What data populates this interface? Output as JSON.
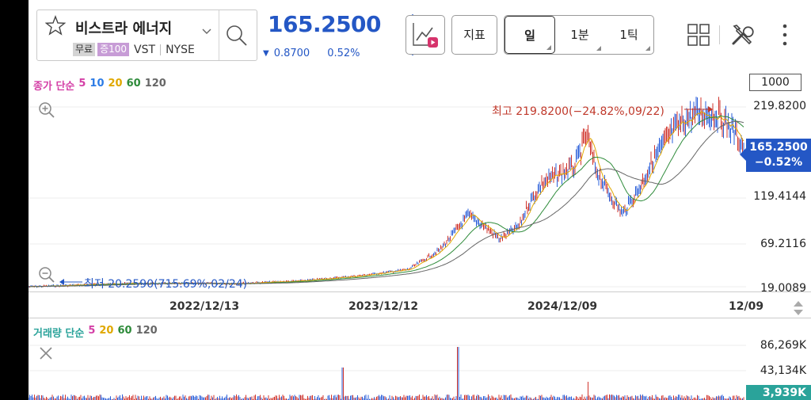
{
  "stock": {
    "name": "비스트라 에너지",
    "tag_free": "무료",
    "tag_margin": "증100",
    "ticker": "VST",
    "exchange": "NYSE"
  },
  "quote": {
    "price": "165.2500",
    "change": "0.8700",
    "change_pct": "0.52%",
    "direction": "down",
    "color": "#2457c5"
  },
  "toolbar": {
    "indicator_label": "지표",
    "periods": [
      {
        "label": "일",
        "active": true
      },
      {
        "label": "1분",
        "active": false
      },
      {
        "label": "1틱",
        "active": false
      }
    ]
  },
  "price_chart": {
    "ma_title": "종가 단순",
    "ma_periods": [
      {
        "label": "5",
        "color": "#d43fa6"
      },
      {
        "label": "10",
        "color": "#2c7be5"
      },
      {
        "label": "20",
        "color": "#e0a800"
      },
      {
        "label": "60",
        "color": "#2e8b3a"
      },
      {
        "label": "120",
        "color": "#666666"
      }
    ],
    "count_button": "1000",
    "y_labels": [
      "219.8200",
      "119.4144",
      "69.2116",
      "19.0089"
    ],
    "current_price": "165.2500",
    "current_pct": "−0.52%",
    "high_label": "최고 219.8200(−24.82%,09/22)",
    "low_label": "최저 20.2590(715.69%,02/24)",
    "x_labels": [
      "2022/12/13",
      "2023/12/12",
      "2024/12/09",
      "12/09"
    ]
  },
  "volume_chart": {
    "ma_title": "거래량 단순",
    "ma_periods": [
      {
        "label": "5",
        "color": "#d43fa6"
      },
      {
        "label": "20",
        "color": "#e0a800"
      },
      {
        "label": "60",
        "color": "#2e8b3a"
      },
      {
        "label": "120",
        "color": "#666666"
      }
    ],
    "y_labels": [
      "86,269K",
      "43,134K"
    ],
    "current_volume": "3,939K"
  },
  "colors": {
    "accent": "#2457c5",
    "high": "#c0392b",
    "volume": "#2aa39a"
  }
}
